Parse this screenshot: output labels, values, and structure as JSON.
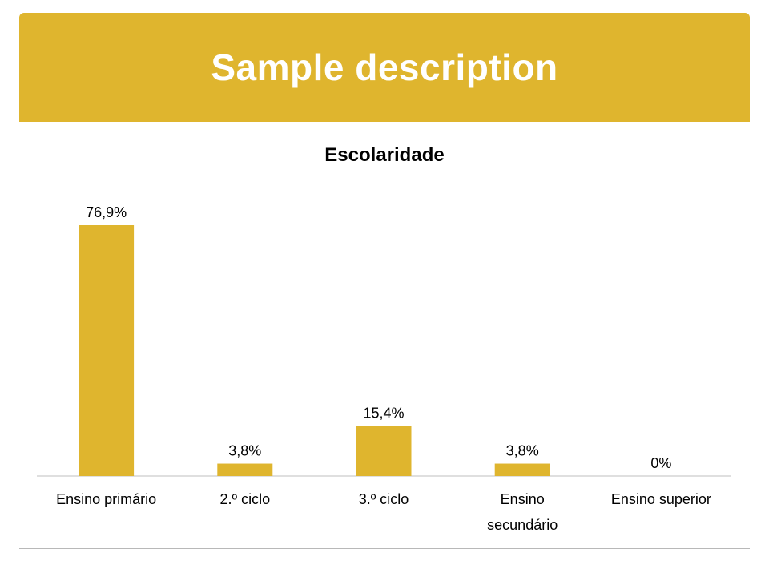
{
  "header": {
    "title": "Sample description",
    "background_color": "#dfb52e"
  },
  "chart_data": {
    "type": "bar",
    "title": "Escolaridade",
    "categories": [
      "Ensino primário",
      "2.º ciclo",
      "3.º ciclo",
      "Ensino secundário",
      "Ensino superior"
    ],
    "category_lines": [
      [
        "Ensino primário"
      ],
      [
        "2.º ciclo"
      ],
      [
        "3.º ciclo"
      ],
      [
        "Ensino",
        "secundário"
      ],
      [
        "Ensino superior"
      ]
    ],
    "values": [
      76.9,
      3.8,
      15.4,
      3.8,
      0
    ],
    "data_labels": [
      "76,9%",
      "3,8%",
      "15,4%",
      "3,8%",
      "0%"
    ],
    "ylim": [
      0,
      76.9
    ],
    "bar_color": "#dfb52e",
    "grid": false,
    "legend": "none"
  }
}
